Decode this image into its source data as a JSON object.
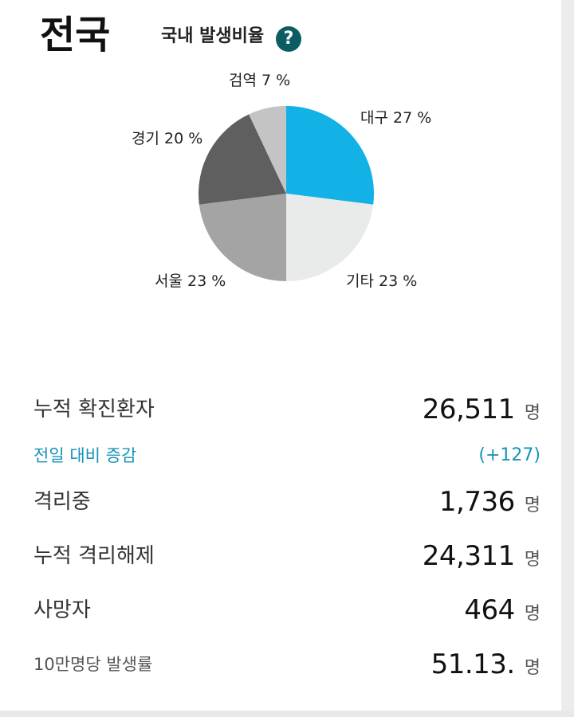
{
  "header": {
    "region": "전국",
    "subtitle": "국내 발생비율",
    "help_icon": "?"
  },
  "chart_data": {
    "type": "pie",
    "slices": [
      {
        "label": "대구 27 %",
        "value": 27,
        "color": "#12b2e6"
      },
      {
        "label": "기타 23 %",
        "value": 23,
        "color": "#e8ebea"
      },
      {
        "label": "서울 23 %",
        "value": 23,
        "color": "#a4a4a4"
      },
      {
        "label": "경기 20 %",
        "value": 20,
        "color": "#5f5f5f"
      },
      {
        "label": "검역 7 %",
        "value": 7,
        "color": "#c4c4c4"
      }
    ]
  },
  "stats": {
    "confirmed_label": "누적 확진환자",
    "confirmed_value": "26,511",
    "confirmed_unit": "명",
    "change_label": "전일 대비 증감",
    "change_value": "(+127)",
    "isolated_label": "격리중",
    "isolated_value": "1,736",
    "isolated_unit": "명",
    "released_label": "누적 격리해제",
    "released_value": "24,311",
    "released_unit": "명",
    "deaths_label": "사망자",
    "deaths_value": "464",
    "deaths_unit": "명",
    "rate_label": "10만명당 발생률",
    "rate_value": "51.13.",
    "rate_unit": "명"
  }
}
